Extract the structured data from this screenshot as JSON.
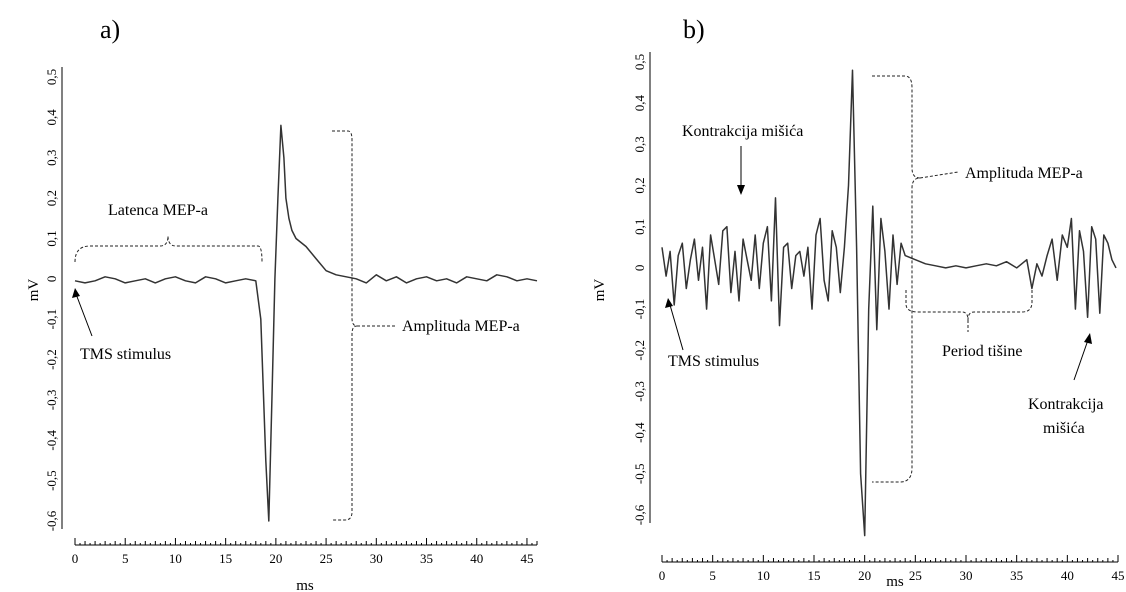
{
  "chart_data": [
    {
      "panel": "a)",
      "type": "line",
      "xlabel": "ms",
      "ylabel": "mV",
      "xlim": [
        0,
        46
      ],
      "ylim": [
        -0.6,
        0.5
      ],
      "xticks": [
        "0",
        "5",
        "10",
        "15",
        "20",
        "25",
        "30",
        "35",
        "40",
        "45"
      ],
      "yticks": [
        "0,5",
        "0,4",
        "0,3",
        "0,2",
        "0,1",
        "0",
        "-0,1",
        "-0,2",
        "-0,3",
        "-0,4",
        "-0,5",
        "-0,6"
      ],
      "series": [
        {
          "x": [
            0,
            1,
            2,
            3,
            4,
            5,
            6,
            7,
            8,
            9,
            10,
            11,
            12,
            13,
            14,
            15,
            16,
            17,
            18,
            18.5,
            19,
            19.3,
            19.6,
            19.9,
            20.2,
            20.5,
            20.8,
            21.0,
            21.3,
            21.6,
            22,
            23,
            24,
            25,
            26,
            27,
            28,
            29,
            30,
            31,
            32,
            33,
            34,
            35,
            36,
            37,
            38,
            39,
            40,
            41,
            42,
            43,
            44,
            45,
            46
          ],
          "y": [
            -0.005,
            -0.01,
            -0.005,
            0.005,
            0.0,
            -0.01,
            -0.005,
            0.0,
            -0.01,
            0.0,
            0.005,
            -0.005,
            -0.01,
            0.005,
            0.0,
            -0.01,
            -0.005,
            0.0,
            -0.005,
            -0.1,
            -0.45,
            -0.6,
            -0.3,
            0.0,
            0.2,
            0.38,
            0.3,
            0.2,
            0.15,
            0.12,
            0.1,
            0.08,
            0.05,
            0.02,
            0.01,
            0.005,
            0.0,
            -0.01,
            0.01,
            -0.005,
            0.005,
            -0.01,
            0.0,
            0.005,
            -0.005,
            0.0,
            -0.01,
            0.005,
            0.0,
            -0.005,
            0.01,
            0.005,
            -0.005,
            0.0,
            -0.005
          ]
        }
      ],
      "annotations": {
        "latency": "Latenca MEP-a",
        "tms": "TMS stimulus",
        "amplitude": "Amplituda MEP-a"
      }
    },
    {
      "panel": "b)",
      "type": "line",
      "xlabel": "ms",
      "ylabel": "mV",
      "xlim": [
        0,
        45
      ],
      "ylim": [
        -0.65,
        0.5
      ],
      "xticks": [
        "0",
        "5",
        "10",
        "15",
        "20",
        "25",
        "30",
        "35",
        "40",
        "45"
      ],
      "yticks": [
        "0,5",
        "0,4",
        "0,3",
        "0,2",
        "0,1",
        "0",
        "-0,1",
        "-0,2",
        "-0,3",
        "-0,4",
        "-0,5",
        "-0,6"
      ],
      "series": [
        {
          "x": [
            0,
            0.4,
            0.8,
            1.2,
            1.6,
            2,
            2.4,
            2.8,
            3.2,
            3.6,
            4,
            4.4,
            4.8,
            5.2,
            5.6,
            6,
            6.4,
            6.8,
            7.2,
            7.6,
            8,
            8.4,
            8.8,
            9.2,
            9.6,
            10,
            10.4,
            10.8,
            11.2,
            11.6,
            12,
            12.4,
            12.8,
            13.2,
            13.6,
            14,
            14.4,
            14.8,
            15.2,
            15.6,
            16,
            16.4,
            16.8,
            17.2,
            17.6,
            18,
            18.4,
            18.8,
            19.2,
            19.6,
            20,
            20.4,
            20.8,
            21.2,
            21.6,
            22,
            22.4,
            22.8,
            23.2,
            23.6,
            24,
            25,
            26,
            27,
            28,
            29,
            30,
            31,
            32,
            33,
            34,
            35,
            36,
            36.5,
            37,
            37.5,
            38,
            38.5,
            39,
            39.5,
            40,
            40.4,
            40.8,
            41.2,
            41.6,
            42,
            42.4,
            42.8,
            43.2,
            43.6,
            44,
            44.4,
            44.8
          ],
          "y": [
            0.05,
            -0.02,
            0.04,
            -0.09,
            0.03,
            0.06,
            -0.05,
            0.02,
            0.07,
            -0.03,
            0.05,
            -0.1,
            0.08,
            0.02,
            -0.04,
            0.09,
            0.1,
            -0.06,
            0.04,
            -0.08,
            0.07,
            0.02,
            -0.03,
            0.08,
            -0.05,
            0.06,
            0.1,
            -0.08,
            0.17,
            -0.14,
            0.05,
            0.06,
            -0.05,
            0.03,
            0.04,
            -0.02,
            0.05,
            -0.1,
            0.08,
            0.12,
            -0.03,
            -0.08,
            0.09,
            0.05,
            -0.06,
            0.05,
            0.2,
            0.48,
            0.05,
            -0.5,
            -0.65,
            -0.1,
            0.15,
            -0.15,
            0.12,
            0.04,
            -0.1,
            0.08,
            -0.04,
            0.06,
            0.03,
            0.02,
            0.01,
            0.005,
            0.0,
            0.005,
            0.0,
            0.005,
            0.01,
            0.005,
            0.015,
            0.0,
            0.02,
            -0.05,
            0.01,
            -0.02,
            0.03,
            0.07,
            -0.03,
            0.08,
            0.05,
            0.12,
            -0.1,
            0.09,
            0.04,
            -0.12,
            0.1,
            0.07,
            -0.11,
            0.08,
            0.06,
            0.02,
            0.0
          ]
        }
      ],
      "annotations": {
        "contraction_top": "Kontrakcija mišića",
        "amplitude": "Amplituda MEP-a",
        "tms": "TMS stimulus",
        "silent": "Period tišine",
        "contraction_bottom_1": "Kontrakcija",
        "contraction_bottom_2": "mišića"
      }
    }
  ]
}
